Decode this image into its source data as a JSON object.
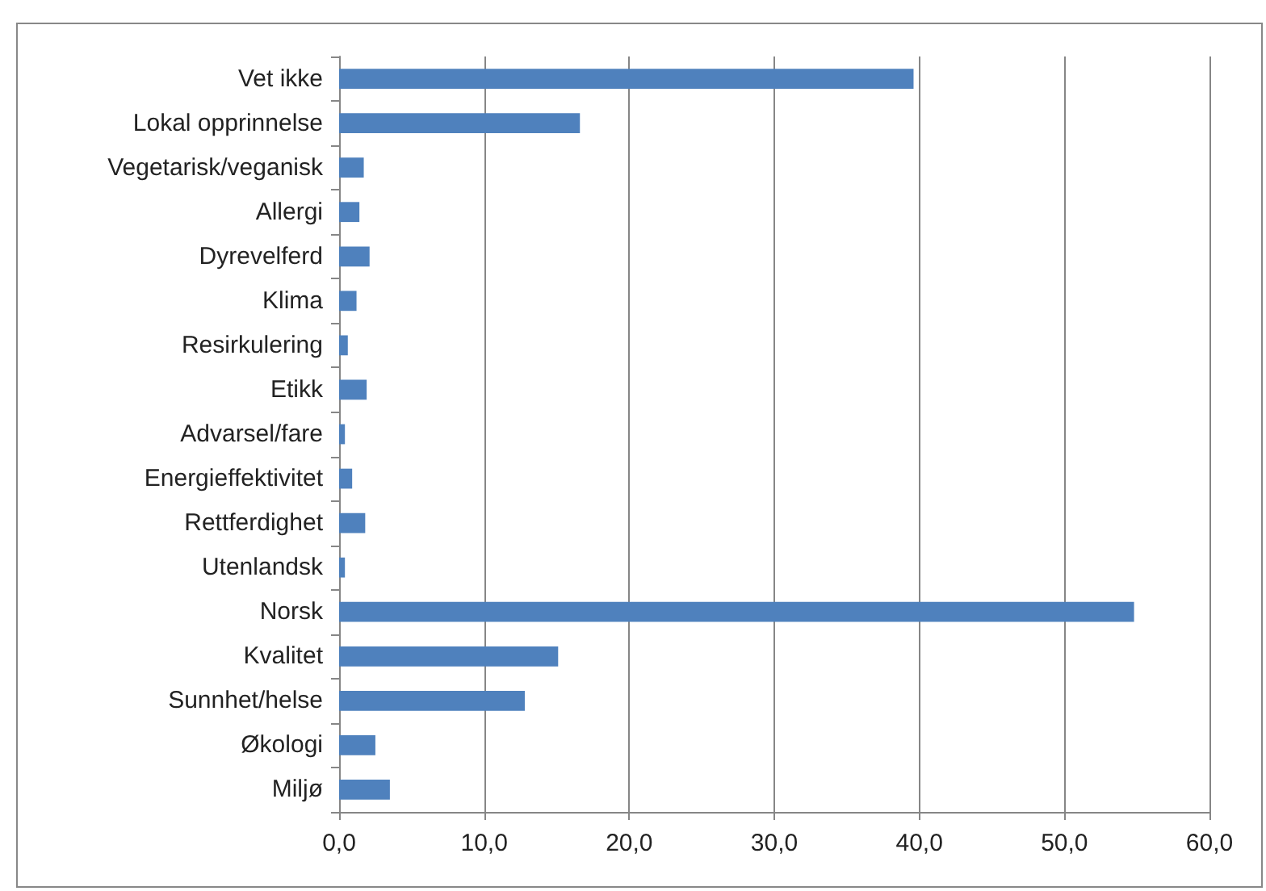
{
  "chart_data": {
    "type": "bar",
    "orientation": "horizontal",
    "categories": [
      "Vet ikke",
      "Lokal opprinnelse",
      "Vegetarisk/veganisk",
      "Allergi",
      "Dyrevelferd",
      "Klima",
      "Resirkulering",
      "Etikk",
      "Advarsel/fare",
      "Energieffektivitet",
      "Rettferdighet",
      "Utenlandsk",
      "Norsk",
      "Kvalitet",
      "Sunnhet/helse",
      "Økologi",
      "Miljø"
    ],
    "values": [
      39.6,
      16.6,
      1.7,
      1.4,
      2.1,
      1.2,
      0.6,
      1.9,
      0.4,
      0.9,
      1.8,
      0.4,
      54.8,
      15.1,
      12.8,
      2.5,
      3.5
    ],
    "color": "#4f81bd",
    "xlim": [
      0,
      60
    ],
    "xticks": [
      {
        "value": 0,
        "label": "0,0"
      },
      {
        "value": 10,
        "label": "10,0"
      },
      {
        "value": 20,
        "label": "20,0"
      },
      {
        "value": 30,
        "label": "30,0"
      },
      {
        "value": 40,
        "label": "40,0"
      },
      {
        "value": 50,
        "label": "50,0"
      },
      {
        "value": 60,
        "label": "60,0"
      }
    ],
    "grid": "x"
  }
}
